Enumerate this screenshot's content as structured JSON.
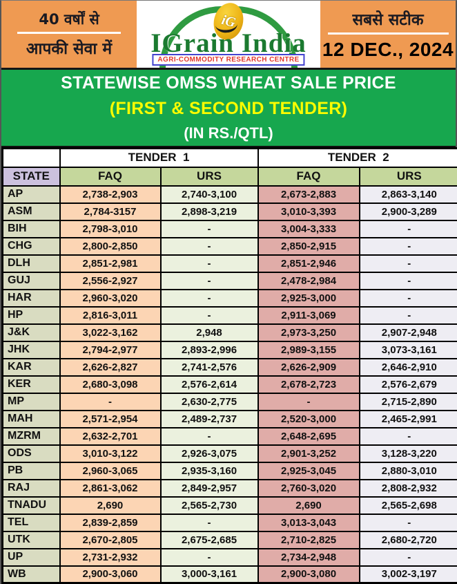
{
  "header": {
    "left_line1": "40 वर्षों से",
    "left_line2": "आपकी सेवा में",
    "logo_monogram": "iG",
    "logo_title": "IGrain India",
    "logo_subtitle": "AGRI-COMMODITY RESEARCH CENTRE",
    "right_line1": "सबसे सटीक",
    "date": "12 DEC., 2024"
  },
  "banner": {
    "line1": "STATEWISE OMSS WHEAT SALE PRICE",
    "line2": "(FIRST & SECOND TENDER)",
    "line3": "(IN RS./QTL)"
  },
  "table": {
    "group_headers": [
      "TENDER  1",
      "TENDER  2"
    ],
    "col_headers": {
      "state": "STATE",
      "faq": "FAQ",
      "urs": "URS"
    },
    "rows": [
      {
        "state": "AP",
        "t1_faq": "2,738-2,903",
        "t1_urs": "2,740-3,100",
        "t2_faq": "2,673-2,883",
        "t2_urs": "2,863-3,140"
      },
      {
        "state": "ASM",
        "t1_faq": "2,784-3157",
        "t1_urs": "2,898-3,219",
        "t2_faq": "3,010-3,393",
        "t2_urs": "2,900-3,289"
      },
      {
        "state": "BIH",
        "t1_faq": "2,798-3,010",
        "t1_urs": "-",
        "t2_faq": "3,004-3,333",
        "t2_urs": "-"
      },
      {
        "state": "CHG",
        "t1_faq": "2,800-2,850",
        "t1_urs": "-",
        "t2_faq": "2,850-2,915",
        "t2_urs": "-"
      },
      {
        "state": "DLH",
        "t1_faq": "2,851-2,981",
        "t1_urs": "-",
        "t2_faq": "2,851-2,946",
        "t2_urs": "-"
      },
      {
        "state": "GUJ",
        "t1_faq": "2,556-2,927",
        "t1_urs": "-",
        "t2_faq": "2,478-2,984",
        "t2_urs": "-"
      },
      {
        "state": "HAR",
        "t1_faq": "2,960-3,020",
        "t1_urs": "-",
        "t2_faq": "2,925-3,000",
        "t2_urs": "-"
      },
      {
        "state": "HP",
        "t1_faq": "2,816-3,011",
        "t1_urs": "-",
        "t2_faq": "2,911-3,069",
        "t2_urs": "-"
      },
      {
        "state": "J&K",
        "t1_faq": "3,022-3,162",
        "t1_urs": "2,948",
        "t2_faq": "2,973-3,250",
        "t2_urs": "2,907-2,948"
      },
      {
        "state": "JHK",
        "t1_faq": "2,794-2,977",
        "t1_urs": "2,893-2,996",
        "t2_faq": "2,989-3,155",
        "t2_urs": "3,073-3,161"
      },
      {
        "state": "KAR",
        "t1_faq": "2,626-2,827",
        "t1_urs": "2,741-2,576",
        "t2_faq": "2,626-2,909",
        "t2_urs": "2,646-2,910"
      },
      {
        "state": "KER",
        "t1_faq": "2,680-3,098",
        "t1_urs": "2,576-2,614",
        "t2_faq": "2,678-2,723",
        "t2_urs": "2,576-2,679"
      },
      {
        "state": "MP",
        "t1_faq": "-",
        "t1_urs": "2,630-2,775",
        "t2_faq": "-",
        "t2_urs": "2,715-2,890"
      },
      {
        "state": "MAH",
        "t1_faq": "2,571-2,954",
        "t1_urs": "2,489-2,737",
        "t2_faq": "2,520-3,000",
        "t2_urs": "2,465-2,991"
      },
      {
        "state": "MZRM",
        "t1_faq": "2,632-2,701",
        "t1_urs": "-",
        "t2_faq": "2,648-2,695",
        "t2_urs": "-"
      },
      {
        "state": "ODS",
        "t1_faq": "3,010-3,122",
        "t1_urs": "2,926-3,075",
        "t2_faq": "2,901-3,252",
        "t2_urs": "3,128-3,220"
      },
      {
        "state": "PB",
        "t1_faq": "2,960-3,065",
        "t1_urs": "2,935-3,160",
        "t2_faq": "2,925-3,045",
        "t2_urs": "2,880-3,010"
      },
      {
        "state": "RAJ",
        "t1_faq": "2,861-3,062",
        "t1_urs": "2,849-2,957",
        "t2_faq": "2,760-3,020",
        "t2_urs": "2,808-2,932"
      },
      {
        "state": "TNADU",
        "t1_faq": "2,690",
        "t1_urs": "2,565-2,730",
        "t2_faq": "2,690",
        "t2_urs": "2,565-2,698"
      },
      {
        "state": "TEL",
        "t1_faq": "2,839-2,859",
        "t1_urs": "-",
        "t2_faq": "3,013-3,043",
        "t2_urs": "-"
      },
      {
        "state": "UTK",
        "t1_faq": "2,670-2,805",
        "t1_urs": "2,675-2,685",
        "t2_faq": "2,710-2,825",
        "t2_urs": "2,680-2,720"
      },
      {
        "state": "UP",
        "t1_faq": "2,731-2,932",
        "t1_urs": "-",
        "t2_faq": "2,734-2,948",
        "t2_urs": "-"
      },
      {
        "state": "WB",
        "t1_faq": "2,900-3,060",
        "t1_urs": "3,000-3,161",
        "t2_faq": "2,900-3,080",
        "t2_urs": "3,002-3,197"
      }
    ]
  },
  "colors": {
    "orange": "#EF9A52",
    "banner-green": "#17A74E",
    "logo-green": "#1B7A30",
    "sub-red": "#E2372B",
    "sub-blue": "#4443CF",
    "yellow": "#FCFC00",
    "state-header": "#CCC1DE",
    "col-header": "#C5D79C",
    "state-cell": "#D9DCC1",
    "t1faq": "#FCD5B4",
    "t1urs": "#EBF1DE",
    "t2faq": "#E0ACA8",
    "t2urs": "#EEEDF3"
  }
}
